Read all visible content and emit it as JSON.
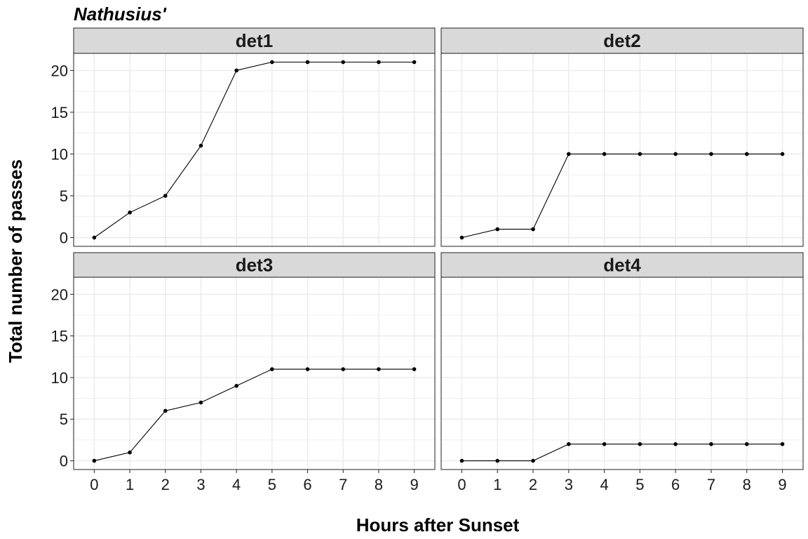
{
  "chart_data": {
    "type": "line",
    "title": "Nathusius'",
    "xlabel": "Hours after Sunset",
    "ylabel": "Total number of passes",
    "x": [
      0,
      1,
      2,
      3,
      4,
      5,
      6,
      7,
      8,
      9
    ],
    "x_ticks": [
      "0",
      "1",
      "2",
      "3",
      "4",
      "5",
      "6",
      "7",
      "8",
      "9"
    ],
    "y_ticks": [
      "0",
      "5",
      "10",
      "15",
      "20"
    ],
    "xlim": [
      -0.58,
      9.58
    ],
    "ylim": [
      -1.05,
      22.05
    ],
    "grid": true,
    "facets": [
      {
        "name": "det1",
        "values": [
          0,
          3,
          5,
          11,
          20,
          21,
          21,
          21,
          21,
          21
        ]
      },
      {
        "name": "det2",
        "values": [
          0,
          1,
          1,
          10,
          10,
          10,
          10,
          10,
          10,
          10
        ]
      },
      {
        "name": "det3",
        "values": [
          0,
          1,
          6,
          7,
          9,
          11,
          11,
          11,
          11,
          11
        ]
      },
      {
        "name": "det4",
        "values": [
          0,
          0,
          0,
          2,
          2,
          2,
          2,
          2,
          2,
          2
        ]
      }
    ],
    "colors": {
      "line": "#000000",
      "point": "#000000",
      "strip_fill": "#d9d9d9",
      "grid": "#ebebeb",
      "border": "#333333"
    }
  }
}
